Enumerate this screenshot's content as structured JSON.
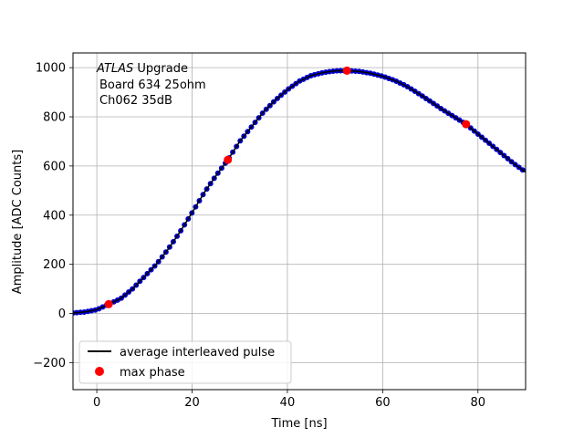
{
  "chart_data": {
    "type": "line",
    "xlabel": "Time [ns]",
    "ylabel": "Amplitude [ADC Counts]",
    "xlim": [
      -5,
      90
    ],
    "ylim": [
      -310,
      1060
    ],
    "grid": true,
    "xticks": [
      0,
      20,
      40,
      60,
      80
    ],
    "yticks": [
      -200,
      0,
      200,
      400,
      600,
      800,
      1000
    ],
    "xtick_labels": [
      "0",
      "20",
      "40",
      "60",
      "80"
    ],
    "ytick_labels": [
      "−200",
      "0",
      "200",
      "400",
      "600",
      "800",
      "1000"
    ],
    "annotation": {
      "italic": "ATLAS",
      "line1_rest": " Upgrade",
      "line2": "Board 634 25ohm",
      "line3": "Ch062 35dB"
    },
    "legend": {
      "position": "lower-left",
      "entries": [
        {
          "label": "average interleaved pulse",
          "marker": "line",
          "color": "#000000"
        },
        {
          "label": "max phase",
          "marker": "circle",
          "color": "#ff0000"
        }
      ]
    },
    "series": [
      {
        "name": "average interleaved pulse",
        "color": "#000000",
        "point_color": "#0000cc",
        "x": [
          -5,
          -2.5,
          0,
          2.5,
          5,
          7.5,
          10,
          12.5,
          15,
          17.5,
          20,
          22.5,
          25,
          27.5,
          30,
          32.5,
          35,
          37.5,
          40,
          42.5,
          45,
          47.5,
          50,
          52.5,
          55,
          57.5,
          60,
          62.5,
          65,
          67.5,
          70,
          72.5,
          75,
          77.5,
          80,
          82.5,
          85,
          87.5,
          90
        ],
        "y": [
          2,
          6,
          15,
          38,
          60,
          100,
          150,
          200,
          262,
          333,
          410,
          490,
          560,
          625,
          700,
          760,
          820,
          868,
          910,
          945,
          968,
          980,
          987,
          988,
          985,
          977,
          965,
          948,
          925,
          895,
          863,
          830,
          800,
          770,
          730,
          690,
          650,
          610,
          575
        ]
      },
      {
        "name": "max phase",
        "color": "#ff0000",
        "x": [
          2.5,
          27.5,
          52.5,
          77.5
        ],
        "y": [
          38,
          625,
          988,
          770
        ]
      }
    ]
  }
}
